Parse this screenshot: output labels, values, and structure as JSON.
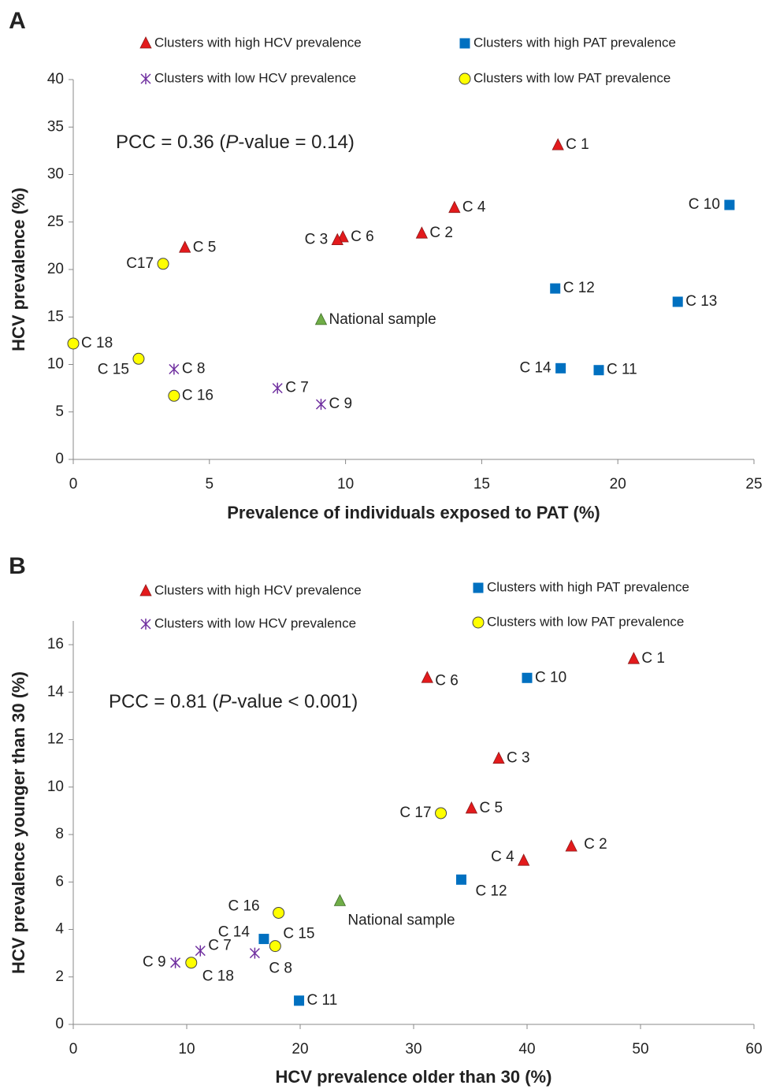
{
  "chart_data": [
    {
      "type": "scatter",
      "panel_label": "A",
      "annotation": {
        "prefix": "PCC = 0.36 (",
        "italic": "P",
        "suffix": "-value = 0.14)"
      },
      "xlabel": "Prevalence of individuals exposed to PAT (%)",
      "ylabel": "HCV prevalence (%)",
      "xlim": [
        0,
        25
      ],
      "xticks": [
        0,
        5,
        10,
        15,
        20,
        25
      ],
      "ylim": [
        0,
        40
      ],
      "yticks": [
        0,
        5,
        10,
        15,
        20,
        25,
        30,
        35,
        40
      ],
      "series": [
        {
          "name": "Clusters with high HCV prevalence",
          "color": "#e31a1c",
          "marker": "triangle",
          "x": [
            17.8,
            14.0,
            12.8,
            9.9,
            9.7,
            4.1
          ],
          "y": [
            33.1,
            26.5,
            23.8,
            23.4,
            23.1,
            22.3
          ],
          "labels": [
            "C 1",
            "C 4",
            "C 2",
            "C 6",
            "C 3",
            "C 5"
          ]
        },
        {
          "name": "Clusters with high PAT prevalence",
          "color": "#0070c0",
          "marker": "square",
          "x": [
            24.1,
            17.7,
            22.2,
            17.9,
            19.3
          ],
          "y": [
            26.8,
            18.0,
            16.6,
            9.6,
            9.4
          ],
          "labels": [
            "C 10",
            "C 12",
            "C 13",
            "C 14",
            "C 11"
          ]
        },
        {
          "name": "Clusters with low HCV prevalence",
          "color": "#7030a0",
          "marker": "star",
          "x": [
            3.7,
            7.5,
            9.1
          ],
          "y": [
            9.5,
            7.5,
            5.8
          ],
          "labels": [
            "C 8",
            "C 7",
            "C 9"
          ]
        },
        {
          "name": "Clusters with low PAT prevalence",
          "color": "#ffff00",
          "marker": "circle",
          "x": [
            3.3,
            0,
            2.4,
            3.7
          ],
          "y": [
            20.6,
            12.2,
            10.6,
            6.7
          ],
          "labels": [
            "C17",
            "C 18",
            "C 15",
            "C 16"
          ]
        }
      ],
      "reference_point": {
        "label": "National sample",
        "color": "#70ad47",
        "x": 9.1,
        "y": 14.7
      }
    },
    {
      "type": "scatter",
      "panel_label": "B",
      "annotation": {
        "prefix": "PCC = 0.81 (",
        "italic": "P",
        "suffix": "-value < 0.001)"
      },
      "xlabel": "HCV prevalence older than 30 (%)",
      "ylabel": "HCV prevalence younger than 30 (%)",
      "xlim": [
        0,
        60
      ],
      "xticks": [
        0,
        10,
        20,
        30,
        40,
        50,
        60
      ],
      "ylim": [
        0,
        17
      ],
      "yticks": [
        0,
        2,
        4,
        6,
        8,
        10,
        12,
        14,
        16
      ],
      "series": [
        {
          "name": "Clusters with high HCV prevalence",
          "color": "#e31a1c",
          "marker": "triangle",
          "x": [
            49.4,
            31.2,
            37.5,
            35.1,
            43.9,
            39.7
          ],
          "y": [
            15.4,
            14.6,
            11.2,
            9.1,
            7.5,
            6.9
          ],
          "labels": [
            "C 1",
            "C 6",
            "C 3",
            "C 5",
            "C 2",
            "C 4"
          ]
        },
        {
          "name": "Clusters with high PAT prevalence",
          "color": "#0070c0",
          "marker": "square",
          "x": [
            40.0,
            34.2,
            16.8,
            19.9
          ],
          "y": [
            14.6,
            6.1,
            3.6,
            1.0
          ],
          "labels": [
            "C 10",
            "C 12",
            "C 14",
            "C 11"
          ]
        },
        {
          "name": "Clusters with low HCV prevalence",
          "color": "#7030a0",
          "marker": "star",
          "x": [
            11.2,
            9.0,
            16.0
          ],
          "y": [
            3.1,
            2.6,
            3.0
          ],
          "labels": [
            "C 7",
            "C 9",
            "C 8"
          ]
        },
        {
          "name": "Clusters with low PAT prevalence",
          "color": "#ffff00",
          "marker": "circle",
          "x": [
            32.4,
            18.1,
            17.8,
            10.4
          ],
          "y": [
            8.9,
            4.7,
            3.3,
            2.6
          ],
          "labels": [
            "C 17",
            "C 16",
            "C 15",
            "C 18"
          ]
        }
      ],
      "reference_point": {
        "label": "National sample",
        "color": "#70ad47",
        "x": 23.5,
        "y": 5.2
      }
    }
  ]
}
